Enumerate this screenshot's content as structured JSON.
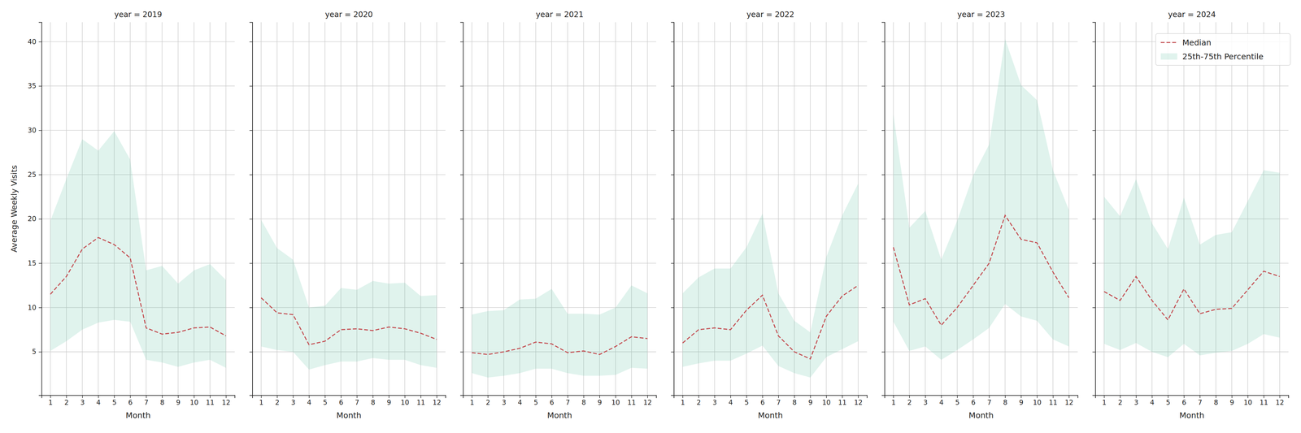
{
  "chart_data": [
    {
      "type": "line",
      "title": "year = 2019",
      "x_label": "Month",
      "y_label": "Average Weekly Visits",
      "x": [
        1,
        2,
        3,
        4,
        5,
        6,
        7,
        8,
        9,
        10,
        11,
        12
      ],
      "xlim": [
        0.45,
        12.55
      ],
      "xticks": [
        1,
        2,
        3,
        4,
        5,
        6,
        7,
        8,
        9,
        10,
        11,
        12
      ],
      "ylim": [
        0.1,
        42.2
      ],
      "yticks": [
        5,
        10,
        15,
        20,
        25,
        30,
        35,
        40
      ],
      "grid": true,
      "series": [
        {
          "name": "Median",
          "type": "line",
          "color": "#c44e52",
          "line_style": "dashed",
          "values": [
            11.5,
            13.5,
            16.6,
            17.9,
            17.1,
            15.6,
            7.7,
            7.0,
            7.2,
            7.7,
            7.8,
            6.8
          ]
        },
        {
          "name": "25th-75th Percentile",
          "type": "area",
          "color": "#66c2a5",
          "values": [
            19.8,
            24.5,
            29.0,
            27.7,
            29.9,
            26.7,
            14.2,
            14.7,
            12.7,
            14.2,
            14.9,
            13.1
          ],
          "low": [
            5.1,
            6.2,
            7.5,
            8.3,
            8.6,
            8.4,
            4.1,
            3.8,
            3.3,
            3.8,
            4.1,
            3.2
          ]
        }
      ]
    },
    {
      "type": "line",
      "title": "year = 2020",
      "x_label": "Month",
      "tick_labels": "x",
      "x": [
        1,
        2,
        3,
        4,
        5,
        6,
        7,
        8,
        9,
        10,
        11,
        12
      ],
      "xlim": [
        0.45,
        12.55
      ],
      "xticks": [
        1,
        2,
        3,
        4,
        5,
        6,
        7,
        8,
        9,
        10,
        11,
        12
      ],
      "ylim": [
        0.1,
        42.2
      ],
      "yticks": [
        5,
        10,
        15,
        20,
        25,
        30,
        35,
        40
      ],
      "grid": true,
      "series": [
        {
          "name": "Median",
          "type": "line",
          "color": "#c44e52",
          "line_style": "dashed",
          "values": [
            11.1,
            9.4,
            9.2,
            5.8,
            6.2,
            7.5,
            7.6,
            7.4,
            7.8,
            7.6,
            7.1,
            6.4
          ]
        },
        {
          "name": "25th-75th Percentile",
          "type": "area",
          "color": "#66c2a5",
          "values": [
            19.9,
            16.7,
            15.4,
            10.0,
            10.2,
            12.2,
            12.0,
            13.0,
            12.7,
            12.8,
            11.3,
            11.4
          ],
          "low": [
            5.6,
            5.2,
            5.0,
            3.0,
            3.5,
            3.9,
            3.9,
            4.3,
            4.1,
            4.1,
            3.5,
            3.2
          ]
        }
      ]
    },
    {
      "type": "line",
      "title": "year = 2021",
      "x_label": "Month",
      "tick_labels": "x",
      "x": [
        1,
        2,
        3,
        4,
        5,
        6,
        7,
        8,
        9,
        10,
        11,
        12
      ],
      "xlim": [
        0.45,
        12.55
      ],
      "xticks": [
        1,
        2,
        3,
        4,
        5,
        6,
        7,
        8,
        9,
        10,
        11,
        12
      ],
      "ylim": [
        0.1,
        42.2
      ],
      "yticks": [
        5,
        10,
        15,
        20,
        25,
        30,
        35,
        40
      ],
      "grid": true,
      "series": [
        {
          "name": "Median",
          "type": "line",
          "color": "#c44e52",
          "line_style": "dashed",
          "values": [
            4.9,
            4.7,
            5.0,
            5.4,
            6.1,
            5.9,
            4.9,
            5.1,
            4.7,
            5.6,
            6.7,
            6.5
          ]
        },
        {
          "name": "25th-75th Percentile",
          "type": "area",
          "color": "#66c2a5",
          "values": [
            9.2,
            9.6,
            9.7,
            10.9,
            11.0,
            12.1,
            9.3,
            9.3,
            9.2,
            10.0,
            12.5,
            11.6
          ],
          "low": [
            2.6,
            2.1,
            2.3,
            2.6,
            3.1,
            3.1,
            2.6,
            2.3,
            2.3,
            2.4,
            3.2,
            3.1
          ]
        }
      ]
    },
    {
      "type": "line",
      "title": "year = 2022",
      "x_label": "Month",
      "tick_labels": "x",
      "x": [
        1,
        2,
        3,
        4,
        5,
        6,
        7,
        8,
        9,
        10,
        11,
        12
      ],
      "xlim": [
        0.45,
        12.55
      ],
      "xticks": [
        1,
        2,
        3,
        4,
        5,
        6,
        7,
        8,
        9,
        10,
        11,
        12
      ],
      "ylim": [
        0.1,
        42.2
      ],
      "yticks": [
        5,
        10,
        15,
        20,
        25,
        30,
        35,
        40
      ],
      "grid": true,
      "series": [
        {
          "name": "Median",
          "type": "line",
          "color": "#c44e52",
          "line_style": "dashed",
          "values": [
            6.0,
            7.5,
            7.7,
            7.5,
            9.7,
            11.4,
            6.8,
            5.0,
            4.2,
            9.0,
            11.3,
            12.5
          ]
        },
        {
          "name": "25th-75th Percentile",
          "type": "area",
          "color": "#66c2a5",
          "values": [
            11.6,
            13.4,
            14.4,
            14.4,
            16.8,
            20.6,
            11.6,
            8.5,
            7.2,
            15.7,
            20.4,
            24.0
          ],
          "low": [
            3.3,
            3.7,
            4.0,
            4.0,
            4.8,
            5.7,
            3.4,
            2.6,
            2.1,
            4.4,
            5.3,
            6.2
          ]
        }
      ]
    },
    {
      "type": "line",
      "title": "year = 2023",
      "x_label": "Month",
      "tick_labels": "x",
      "x": [
        1,
        2,
        3,
        4,
        5,
        6,
        7,
        8,
        9,
        10,
        11,
        12
      ],
      "xlim": [
        0.45,
        12.55
      ],
      "xticks": [
        1,
        2,
        3,
        4,
        5,
        6,
        7,
        8,
        9,
        10,
        11,
        12
      ],
      "ylim": [
        0.1,
        42.2
      ],
      "yticks": [
        5,
        10,
        15,
        20,
        25,
        30,
        35,
        40
      ],
      "grid": true,
      "series": [
        {
          "name": "Median",
          "type": "line",
          "color": "#c44e52",
          "line_style": "dashed",
          "values": [
            16.8,
            10.3,
            11.0,
            8.0,
            10.0,
            12.5,
            15.0,
            20.4,
            17.7,
            17.3,
            14.0,
            11.1
          ]
        },
        {
          "name": "25th-75th Percentile",
          "type": "area",
          "color": "#66c2a5",
          "values": [
            31.8,
            19.0,
            20.9,
            15.4,
            19.8,
            24.9,
            28.4,
            40.3,
            35.1,
            33.4,
            25.5,
            21.0
          ],
          "low": [
            8.4,
            5.1,
            5.6,
            4.1,
            5.2,
            6.4,
            7.7,
            10.4,
            9.0,
            8.5,
            6.4,
            5.6
          ]
        }
      ]
    },
    {
      "type": "line",
      "title": "year = 2024",
      "x_label": "Month",
      "tick_labels": "x",
      "legend": "upper right",
      "x": [
        1,
        2,
        3,
        4,
        5,
        6,
        7,
        8,
        9,
        10,
        11,
        12
      ],
      "xlim": [
        0.45,
        12.55
      ],
      "xticks": [
        1,
        2,
        3,
        4,
        5,
        6,
        7,
        8,
        9,
        10,
        11,
        12
      ],
      "ylim": [
        0.1,
        42.2
      ],
      "yticks": [
        5,
        10,
        15,
        20,
        25,
        30,
        35,
        40
      ],
      "grid": true,
      "series": [
        {
          "name": "Median",
          "type": "line",
          "color": "#c44e52",
          "line_style": "dashed",
          "values": [
            11.8,
            10.8,
            13.5,
            10.8,
            8.6,
            12.1,
            9.3,
            9.8,
            9.9,
            12.0,
            14.1,
            13.5
          ]
        },
        {
          "name": "25th-75th Percentile",
          "type": "area",
          "color": "#66c2a5",
          "values": [
            22.5,
            20.3,
            24.5,
            19.5,
            16.6,
            22.4,
            17.1,
            18.2,
            18.5,
            22.0,
            25.5,
            25.2
          ],
          "low": [
            5.9,
            5.2,
            6.0,
            5.0,
            4.4,
            5.9,
            4.6,
            4.9,
            5.1,
            5.9,
            7.0,
            6.6
          ]
        }
      ]
    }
  ]
}
